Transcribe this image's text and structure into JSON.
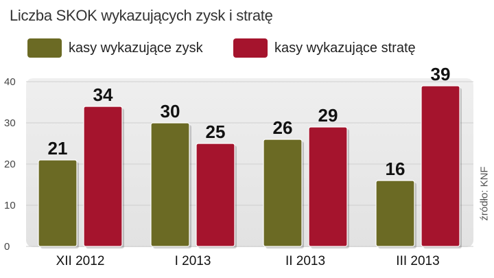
{
  "chart_data": {
    "type": "bar",
    "title": "Liczba SKOK wykazujących zysk i stratę",
    "categories": [
      "XII 2012",
      "I 2013",
      "II 2013",
      "III 2013"
    ],
    "series": [
      {
        "name": "kasy wykazujące zysk",
        "values": [
          21,
          30,
          26,
          16
        ],
        "color": "#6b6a24"
      },
      {
        "name": "kasy wykazujące stratę",
        "values": [
          34,
          25,
          29,
          39
        ],
        "color": "#a5142d"
      }
    ],
    "yticks": [
      0,
      10,
      20,
      30,
      40
    ],
    "ylim": [
      0,
      40
    ],
    "xlabel": "",
    "ylabel": "",
    "grid": true,
    "legend": "top",
    "source": "źródło: KNF"
  }
}
